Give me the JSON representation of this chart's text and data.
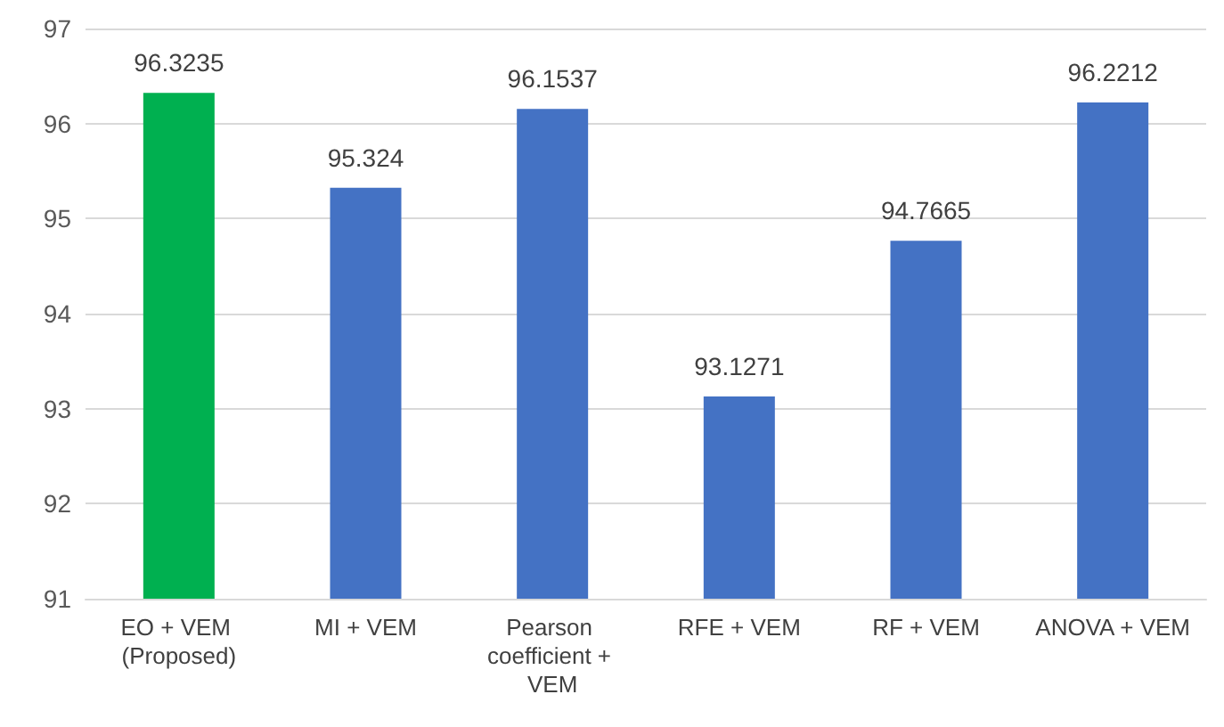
{
  "chart_data": {
    "type": "bar",
    "categories": [
      "EO + VEM (Proposed)",
      "MI + VEM",
      "Pearson coefficient + VEM",
      "RFE + VEM",
      "RF + VEM",
      "ANOVA + VEM"
    ],
    "values": [
      96.3235,
      95.324,
      96.1537,
      93.1271,
      94.7665,
      96.2212
    ],
    "colors": [
      "#00b050",
      "#4472c4",
      "#4472c4",
      "#4472c4",
      "#4472c4",
      "#4472c4"
    ],
    "ylim": [
      91,
      97
    ],
    "yticks": [
      91,
      92,
      93,
      94,
      95,
      96,
      97
    ],
    "grid": "y",
    "data_labels": true
  }
}
